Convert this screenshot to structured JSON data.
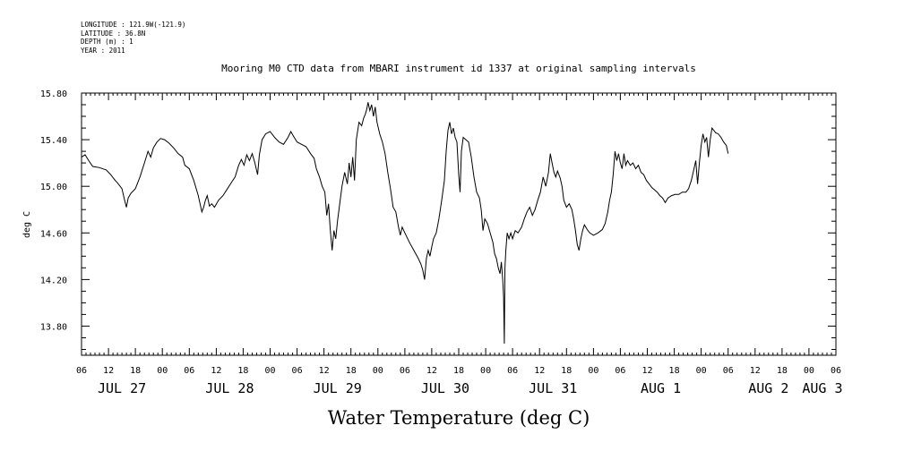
{
  "meta": {
    "longitude": "LONGITUDE : 121.9W(-121.9)",
    "latitude": "LATITUDE : 36.8N",
    "depth": "DEPTH (m) : 1",
    "year": "YEAR : 2011"
  },
  "chart_data": {
    "type": "line",
    "title": "Mooring M0 CTD data from MBARI instrument id 1337 at original sampling intervals",
    "xlabel": "Water Temperature (deg C)",
    "ylabel": "deg C",
    "ylim": [
      13.55,
      15.8
    ],
    "xlim": [
      0,
      168
    ],
    "x_unit": "hours since JUL 27 06:00",
    "y_ticks": [
      "13.80",
      "14.20",
      "14.60",
      "15.00",
      "15.40",
      "15.80"
    ],
    "y_tick_values": [
      13.8,
      14.2,
      14.6,
      15.0,
      15.4,
      15.8
    ],
    "x_hour_labels": [
      "06",
      "12",
      "18",
      "00",
      "06",
      "12",
      "18",
      "00",
      "06",
      "12",
      "18",
      "00",
      "06",
      "12",
      "18",
      "00",
      "06",
      "12",
      "18",
      "00",
      "06",
      "12",
      "18",
      "00",
      "06",
      "12",
      "18",
      "00",
      "06"
    ],
    "day_labels": [
      {
        "label": "JUL 27",
        "hour": 9
      },
      {
        "label": "JUL 28",
        "hour": 33
      },
      {
        "label": "JUL 29",
        "hour": 57
      },
      {
        "label": "JUL 30",
        "hour": 81
      },
      {
        "label": "JUL 31",
        "hour": 105
      },
      {
        "label": "AUG  1",
        "hour": 129
      },
      {
        "label": "AUG  2",
        "hour": 153
      },
      {
        "label": "AUG  3",
        "hour": 165
      }
    ],
    "grid": false,
    "series": [
      {
        "color": "#000000",
        "points": [
          [
            0,
            15.25
          ],
          [
            0.8,
            15.27
          ],
          [
            1.6,
            15.22
          ],
          [
            2.5,
            15.17
          ],
          [
            4,
            15.16
          ],
          [
            5.5,
            15.14
          ],
          [
            6.5,
            15.1
          ],
          [
            7.5,
            15.05
          ],
          [
            8,
            15.03
          ],
          [
            9,
            14.98
          ],
          [
            9.6,
            14.88
          ],
          [
            10,
            14.82
          ],
          [
            10.4,
            14.9
          ],
          [
            11,
            14.94
          ],
          [
            12,
            14.98
          ],
          [
            13,
            15.08
          ],
          [
            14,
            15.2
          ],
          [
            14.8,
            15.3
          ],
          [
            15.4,
            15.25
          ],
          [
            16,
            15.33
          ],
          [
            16.8,
            15.38
          ],
          [
            17.6,
            15.41
          ],
          [
            18.5,
            15.4
          ],
          [
            19.5,
            15.37
          ],
          [
            20.5,
            15.33
          ],
          [
            21.5,
            15.28
          ],
          [
            22.5,
            15.25
          ],
          [
            23,
            15.18
          ],
          [
            24,
            15.15
          ],
          [
            25,
            15.05
          ],
          [
            26,
            14.92
          ],
          [
            26.8,
            14.78
          ],
          [
            27.2,
            14.82
          ],
          [
            27.6,
            14.88
          ],
          [
            28,
            14.92
          ],
          [
            28.5,
            14.83
          ],
          [
            29,
            14.85
          ],
          [
            29.6,
            14.82
          ],
          [
            30.5,
            14.88
          ],
          [
            31.5,
            14.92
          ],
          [
            32.5,
            14.98
          ],
          [
            33.5,
            15.04
          ],
          [
            34.2,
            15.08
          ],
          [
            35,
            15.18
          ],
          [
            35.6,
            15.23
          ],
          [
            36.2,
            15.18
          ],
          [
            36.8,
            15.27
          ],
          [
            37.4,
            15.22
          ],
          [
            38,
            15.28
          ],
          [
            38.6,
            15.2
          ],
          [
            39.2,
            15.1
          ],
          [
            39.6,
            15.27
          ],
          [
            40.2,
            15.4
          ],
          [
            41,
            15.45
          ],
          [
            42,
            15.47
          ],
          [
            43,
            15.42
          ],
          [
            44,
            15.38
          ],
          [
            45,
            15.36
          ],
          [
            46,
            15.42
          ],
          [
            46.6,
            15.47
          ],
          [
            47.2,
            15.43
          ],
          [
            48,
            15.38
          ],
          [
            49,
            15.36
          ],
          [
            50,
            15.34
          ],
          [
            51,
            15.28
          ],
          [
            51.8,
            15.24
          ],
          [
            52.3,
            15.15
          ],
          [
            53,
            15.08
          ],
          [
            53.6,
            15
          ],
          [
            54.2,
            14.95
          ],
          [
            54.6,
            14.75
          ],
          [
            55,
            14.85
          ],
          [
            55.4,
            14.62
          ],
          [
            55.8,
            14.45
          ],
          [
            56.2,
            14.62
          ],
          [
            56.6,
            14.55
          ],
          [
            57,
            14.7
          ],
          [
            57.4,
            14.82
          ],
          [
            58,
            15
          ],
          [
            58.6,
            15.12
          ],
          [
            59.2,
            15.02
          ],
          [
            59.6,
            15.2
          ],
          [
            60,
            15.08
          ],
          [
            60.4,
            15.25
          ],
          [
            60.8,
            15.05
          ],
          [
            61.2,
            15.4
          ],
          [
            61.8,
            15.55
          ],
          [
            62.4,
            15.52
          ],
          [
            62.8,
            15.58
          ],
          [
            63.2,
            15.62
          ],
          [
            63.5,
            15.66
          ],
          [
            63.8,
            15.72
          ],
          [
            64.2,
            15.65
          ],
          [
            64.6,
            15.7
          ],
          [
            65,
            15.6
          ],
          [
            65.4,
            15.68
          ],
          [
            65.8,
            15.55
          ],
          [
            66.4,
            15.45
          ],
          [
            67,
            15.38
          ],
          [
            67.6,
            15.28
          ],
          [
            68.2,
            15.12
          ],
          [
            68.8,
            14.98
          ],
          [
            69.4,
            14.82
          ],
          [
            70,
            14.78
          ],
          [
            70.6,
            14.65
          ],
          [
            71,
            14.58
          ],
          [
            71.4,
            14.65
          ],
          [
            72,
            14.6
          ],
          [
            73,
            14.52
          ],
          [
            74,
            14.45
          ],
          [
            75,
            14.38
          ],
          [
            75.6,
            14.33
          ],
          [
            76,
            14.28
          ],
          [
            76.4,
            14.2
          ],
          [
            76.8,
            14.38
          ],
          [
            77.2,
            14.45
          ],
          [
            77.6,
            14.4
          ],
          [
            78,
            14.48
          ],
          [
            78.4,
            14.55
          ],
          [
            79,
            14.6
          ],
          [
            79.6,
            14.72
          ],
          [
            80.2,
            14.88
          ],
          [
            80.8,
            15.05
          ],
          [
            81.2,
            15.3
          ],
          [
            81.6,
            15.48
          ],
          [
            82,
            15.55
          ],
          [
            82.4,
            15.45
          ],
          [
            82.8,
            15.5
          ],
          [
            83.2,
            15.42
          ],
          [
            83.6,
            15.38
          ],
          [
            84,
            15.1
          ],
          [
            84.3,
            14.95
          ],
          [
            84.6,
            15.3
          ],
          [
            85,
            15.42
          ],
          [
            85.6,
            15.4
          ],
          [
            86.2,
            15.38
          ],
          [
            86.8,
            15.25
          ],
          [
            87.4,
            15.08
          ],
          [
            88,
            14.95
          ],
          [
            88.6,
            14.9
          ],
          [
            89,
            14.8
          ],
          [
            89.4,
            14.62
          ],
          [
            89.8,
            14.72
          ],
          [
            90.4,
            14.68
          ],
          [
            91,
            14.6
          ],
          [
            91.6,
            14.52
          ],
          [
            92,
            14.42
          ],
          [
            92.4,
            14.38
          ],
          [
            92.8,
            14.3
          ],
          [
            93.2,
            14.25
          ],
          [
            93.5,
            14.35
          ],
          [
            93.8,
            14.2
          ],
          [
            94,
            14.05
          ],
          [
            94.15,
            13.65
          ],
          [
            94.3,
            14.3
          ],
          [
            94.5,
            14.45
          ],
          [
            94.8,
            14.6
          ],
          [
            95.2,
            14.55
          ],
          [
            95.6,
            14.6
          ],
          [
            96,
            14.55
          ],
          [
            96.6,
            14.62
          ],
          [
            97.2,
            14.6
          ],
          [
            98,
            14.65
          ],
          [
            98.6,
            14.72
          ],
          [
            99.2,
            14.78
          ],
          [
            99.8,
            14.82
          ],
          [
            100.4,
            14.75
          ],
          [
            101,
            14.8
          ],
          [
            101.6,
            14.88
          ],
          [
            102.2,
            14.95
          ],
          [
            102.8,
            15.08
          ],
          [
            103.4,
            15
          ],
          [
            104,
            15.12
          ],
          [
            104.4,
            15.28
          ],
          [
            104.8,
            15.2
          ],
          [
            105.2,
            15.12
          ],
          [
            105.6,
            15.08
          ],
          [
            106,
            15.13
          ],
          [
            106.6,
            15.07
          ],
          [
            107,
            15
          ],
          [
            107.4,
            14.88
          ],
          [
            108,
            14.82
          ],
          [
            108.6,
            14.85
          ],
          [
            109.2,
            14.8
          ],
          [
            109.6,
            14.72
          ],
          [
            110,
            14.62
          ],
          [
            110.4,
            14.5
          ],
          [
            110.8,
            14.45
          ],
          [
            111.2,
            14.55
          ],
          [
            111.6,
            14.62
          ],
          [
            112,
            14.67
          ],
          [
            112.6,
            14.63
          ],
          [
            113.2,
            14.6
          ],
          [
            114,
            14.58
          ],
          [
            115,
            14.6
          ],
          [
            116,
            14.63
          ],
          [
            116.6,
            14.68
          ],
          [
            117.2,
            14.78
          ],
          [
            117.6,
            14.88
          ],
          [
            118,
            14.95
          ],
          [
            118.4,
            15.1
          ],
          [
            118.8,
            15.3
          ],
          [
            119.2,
            15.22
          ],
          [
            119.6,
            15.28
          ],
          [
            120,
            15.2
          ],
          [
            120.4,
            15.15
          ],
          [
            120.8,
            15.28
          ],
          [
            121.2,
            15.18
          ],
          [
            121.6,
            15.22
          ],
          [
            122.2,
            15.18
          ],
          [
            122.8,
            15.2
          ],
          [
            123.4,
            15.15
          ],
          [
            124,
            15.18
          ],
          [
            124.6,
            15.12
          ],
          [
            125.2,
            15.1
          ],
          [
            125.8,
            15.05
          ],
          [
            126.4,
            15.02
          ],
          [
            127,
            14.99
          ],
          [
            127.6,
            14.97
          ],
          [
            128.2,
            14.95
          ],
          [
            128.8,
            14.92
          ],
          [
            129.4,
            14.9
          ],
          [
            130,
            14.86
          ],
          [
            130.6,
            14.9
          ],
          [
            131.4,
            14.92
          ],
          [
            132.2,
            14.93
          ],
          [
            133,
            14.93
          ],
          [
            133.8,
            14.95
          ],
          [
            134.6,
            14.95
          ],
          [
            135.2,
            14.98
          ],
          [
            135.8,
            15.05
          ],
          [
            136.4,
            15.15
          ],
          [
            136.8,
            15.22
          ],
          [
            137.2,
            15.02
          ],
          [
            137.6,
            15.2
          ],
          [
            138,
            15.35
          ],
          [
            138.4,
            15.45
          ],
          [
            138.8,
            15.38
          ],
          [
            139.2,
            15.42
          ],
          [
            139.6,
            15.25
          ],
          [
            140,
            15.4
          ],
          [
            140.4,
            15.5
          ],
          [
            140.8,
            15.48
          ],
          [
            141.2,
            15.46
          ],
          [
            141.8,
            15.45
          ],
          [
            142.4,
            15.42
          ],
          [
            143,
            15.38
          ],
          [
            143.6,
            15.35
          ],
          [
            144,
            15.28
          ]
        ]
      }
    ]
  }
}
